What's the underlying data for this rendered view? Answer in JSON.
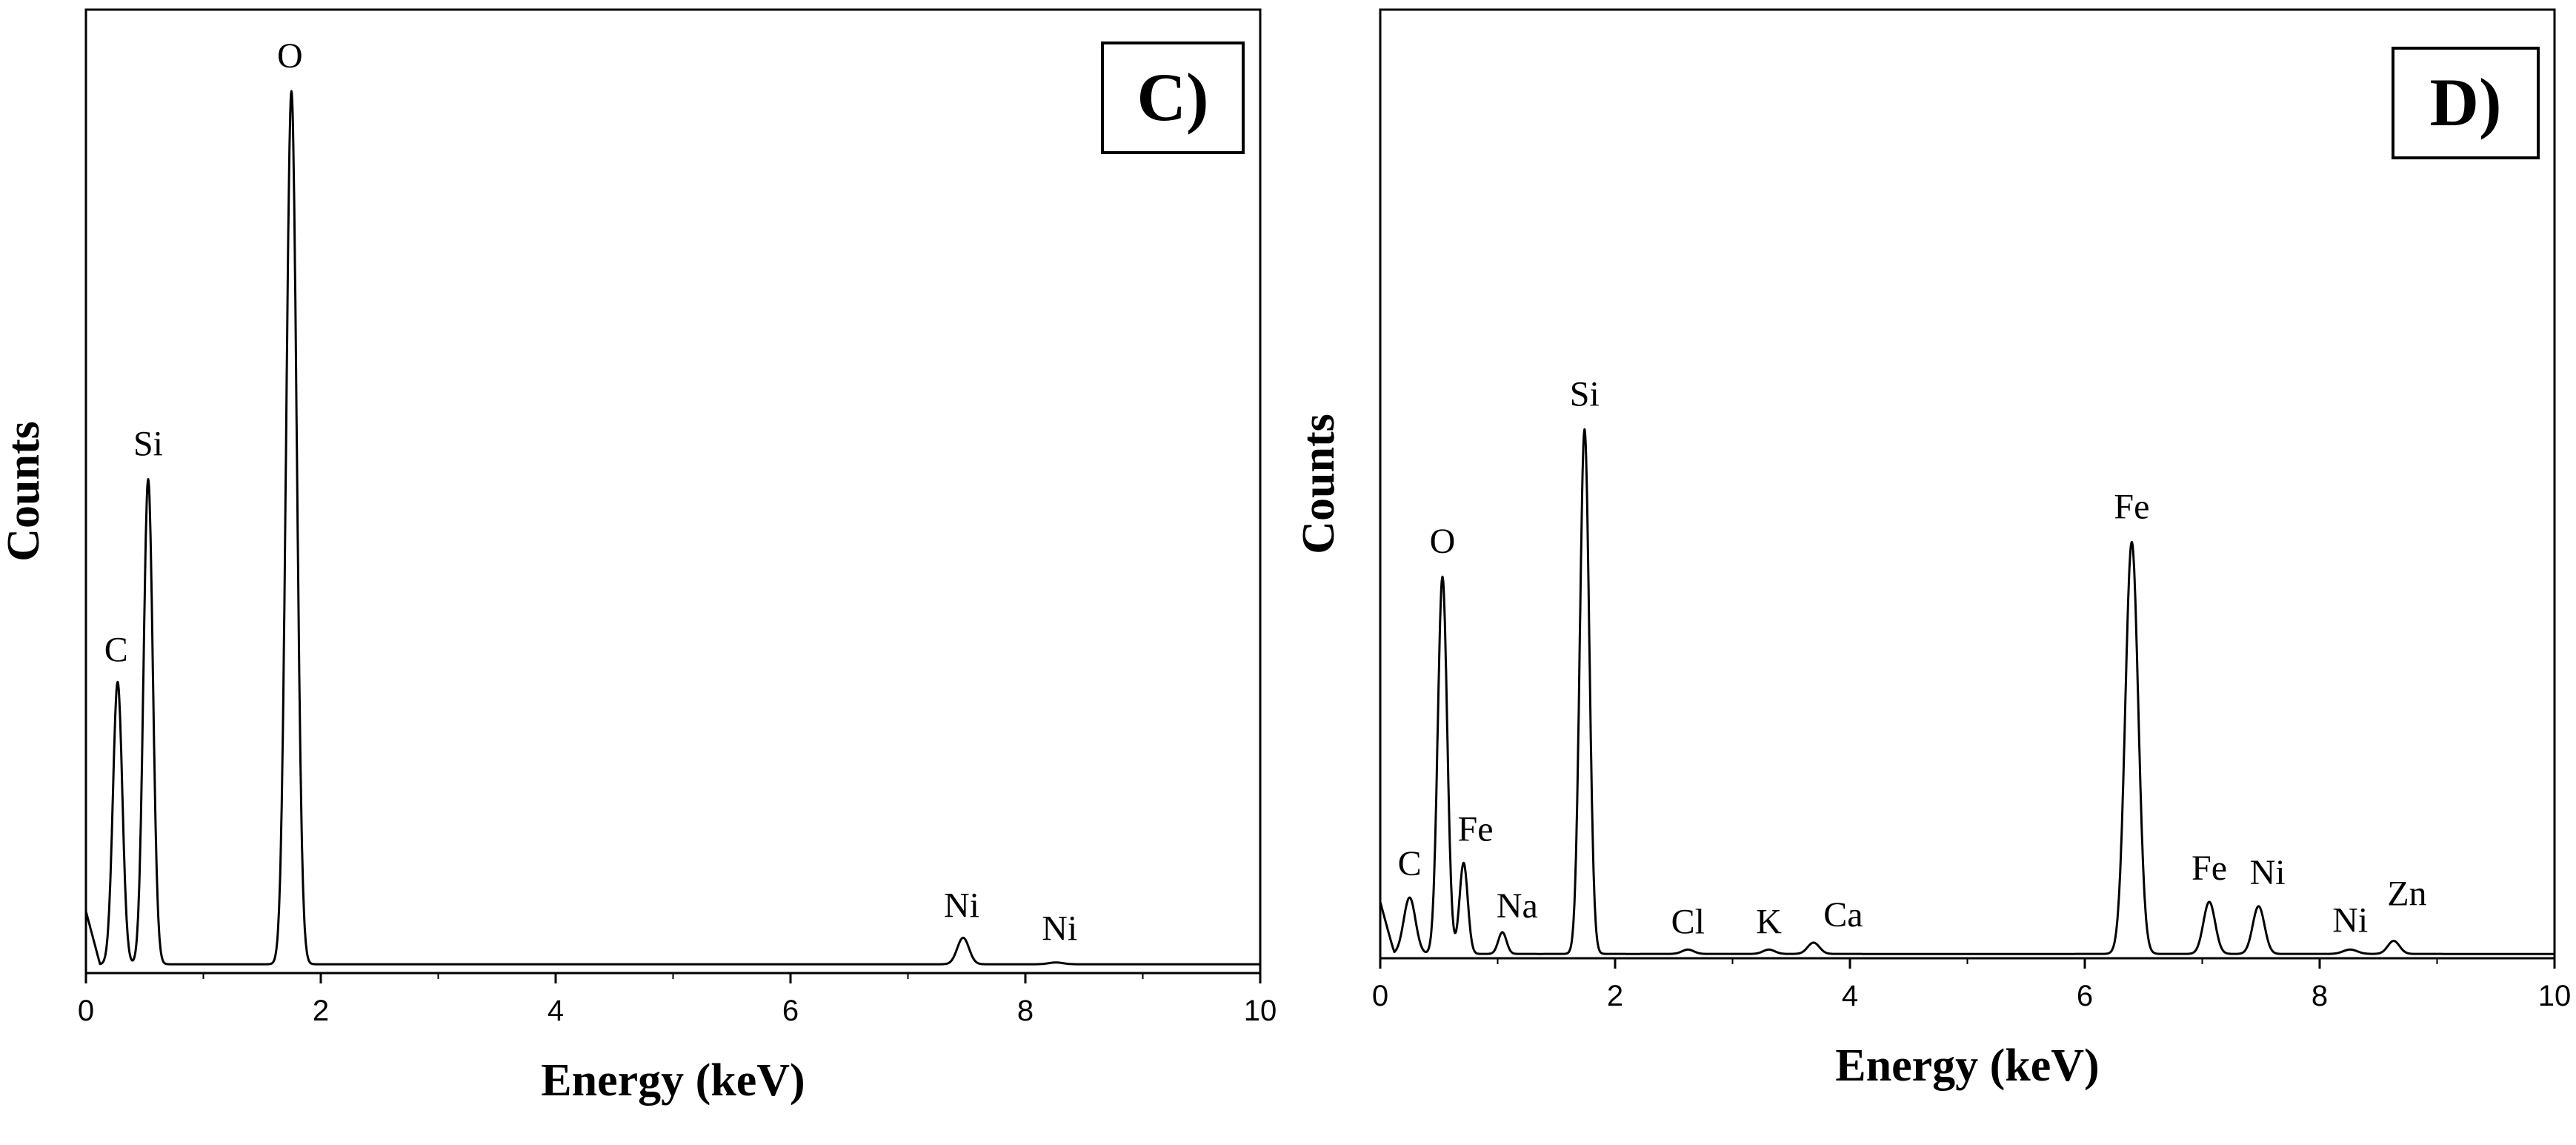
{
  "chart_data": [
    {
      "type": "line",
      "panel_label": "C)",
      "xlabel": "Energy (keV)",
      "ylabel": "Counts",
      "xlim": [
        0,
        10
      ],
      "ylim": [
        0,
        100
      ],
      "xticks": [
        "0",
        "2",
        "4",
        "6",
        "8",
        "10"
      ],
      "grid": false,
      "baseline": 1,
      "peaks": [
        {
          "label": "C",
          "x": 0.27,
          "y": 33
        },
        {
          "label": "Si",
          "x": 0.53,
          "y": 56
        },
        {
          "label": "O",
          "x": 1.75,
          "y": 100
        },
        {
          "label": "Ni",
          "x": 7.47,
          "y": 4
        },
        {
          "label": "Ni",
          "x": 8.26,
          "y": 1.2
        }
      ]
    },
    {
      "type": "line",
      "panel_label": "D)",
      "xlabel": "Energy (keV)",
      "ylabel": "Counts",
      "xlim": [
        0,
        10
      ],
      "ylim": [
        0,
        100
      ],
      "xticks": [
        "0",
        "2",
        "4",
        "6",
        "8",
        "10"
      ],
      "grid": false,
      "baseline": 0.5,
      "peaks": [
        {
          "label": "C",
          "x": 0.25,
          "y": 7
        },
        {
          "label": "O",
          "x": 0.53,
          "y": 44
        },
        {
          "label": "Fe",
          "x": 0.71,
          "y": 11
        },
        {
          "label": "Na",
          "x": 1.04,
          "y": 3
        },
        {
          "label": "Si",
          "x": 1.74,
          "y": 61
        },
        {
          "label": "Cl",
          "x": 2.62,
          "y": 1
        },
        {
          "label": "K",
          "x": 3.31,
          "y": 1
        },
        {
          "label": "Ca",
          "x": 3.69,
          "y": 1.8
        },
        {
          "label": "Fe",
          "x": 6.4,
          "y": 48
        },
        {
          "label": "Fe",
          "x": 7.06,
          "y": 6.5
        },
        {
          "label": "Ni",
          "x": 7.48,
          "y": 6
        },
        {
          "label": "Ni",
          "x": 8.26,
          "y": 1
        },
        {
          "label": "Zn",
          "x": 8.63,
          "y": 2
        }
      ]
    }
  ]
}
